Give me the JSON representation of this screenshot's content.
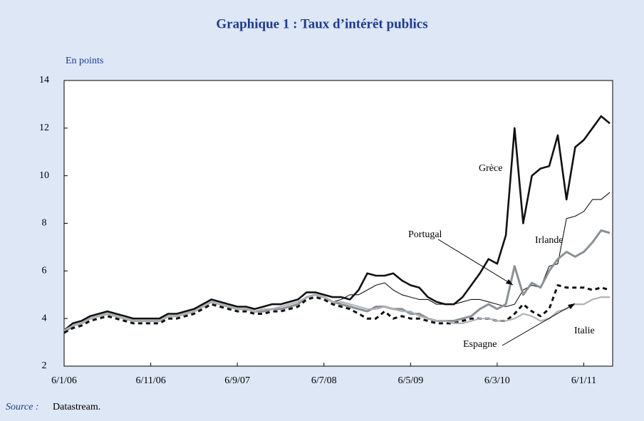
{
  "chart_data": {
    "type": "line",
    "title": "Graphique 1 : Taux d’intérêt publics",
    "y_label": "En points",
    "source_label": "Source :",
    "source": "Datastream.",
    "x": [
      "6/1/06",
      "6/2/06",
      "6/3/06",
      "6/4/06",
      "6/5/06",
      "6/6/06",
      "6/7/06",
      "6/8/06",
      "6/9/06",
      "6/10/06",
      "6/11/06",
      "6/12/06",
      "6/1/07",
      "6/2/07",
      "6/3/07",
      "6/4/07",
      "6/5/07",
      "6/6/07",
      "6/7/07",
      "6/8/07",
      "6/9/07",
      "6/10/07",
      "6/11/07",
      "6/12/07",
      "6/1/08",
      "6/2/08",
      "6/3/08",
      "6/4/08",
      "6/5/08",
      "6/6/08",
      "6/7/08",
      "6/8/08",
      "6/9/08",
      "6/10/08",
      "6/11/08",
      "6/12/08",
      "6/1/09",
      "6/2/09",
      "6/3/09",
      "6/4/09",
      "6/5/09",
      "6/6/09",
      "6/7/09",
      "6/8/09",
      "6/9/09",
      "6/10/09",
      "6/11/09",
      "6/12/09",
      "6/1/10",
      "6/2/10",
      "6/3/10",
      "6/4/10",
      "6/5/10",
      "6/6/10",
      "6/7/10",
      "6/8/10",
      "6/9/10",
      "6/10/10",
      "6/11/10",
      "6/12/10",
      "6/1/11",
      "6/2/11",
      "6/3/11",
      "6/4/11"
    ],
    "xticks": [
      "6/1/06",
      "6/11/06",
      "6/9/07",
      "6/7/08",
      "6/5/09",
      "6/3/10",
      "6/1/11"
    ],
    "ylim": [
      2,
      14
    ],
    "yticks": [
      2,
      4,
      6,
      8,
      10,
      12,
      14
    ],
    "series": [
      {
        "name": "Grèce",
        "color": "#111111",
        "width": 2.6,
        "style": "solid",
        "values": [
          3.5,
          3.8,
          3.9,
          4.1,
          4.2,
          4.3,
          4.2,
          4.1,
          4.0,
          4.0,
          4.0,
          4.0,
          4.2,
          4.2,
          4.3,
          4.4,
          4.6,
          4.8,
          4.7,
          4.6,
          4.5,
          4.5,
          4.4,
          4.5,
          4.6,
          4.6,
          4.7,
          4.8,
          5.1,
          5.1,
          5.0,
          4.9,
          4.9,
          4.8,
          5.2,
          5.9,
          5.8,
          5.8,
          5.9,
          5.6,
          5.4,
          5.3,
          4.9,
          4.7,
          4.6,
          4.6,
          4.9,
          5.4,
          5.9,
          6.5,
          6.3,
          7.5,
          12.0,
          8.0,
          10.0,
          10.3,
          10.4,
          11.7,
          9.0,
          11.2,
          11.5,
          12.0,
          12.5,
          12.2
        ]
      },
      {
        "name": "Irlande",
        "color": "#111111",
        "width": 1.1,
        "style": "solid",
        "values": [
          3.4,
          3.7,
          3.8,
          4.0,
          4.1,
          4.2,
          4.1,
          4.0,
          3.9,
          3.9,
          3.9,
          3.9,
          4.1,
          4.1,
          4.2,
          4.3,
          4.5,
          4.7,
          4.6,
          4.5,
          4.4,
          4.4,
          4.3,
          4.3,
          4.4,
          4.4,
          4.5,
          4.6,
          4.9,
          5.0,
          4.9,
          4.7,
          4.8,
          5.0,
          5.0,
          5.2,
          5.4,
          5.5,
          5.2,
          5.0,
          4.9,
          4.8,
          4.8,
          4.6,
          4.6,
          4.6,
          4.7,
          4.8,
          4.8,
          4.7,
          4.6,
          4.5,
          4.6,
          5.2,
          5.4,
          5.3,
          6.2,
          6.3,
          8.2,
          8.3,
          8.5,
          9.0,
          9.0,
          9.3
        ]
      },
      {
        "name": "Portugal",
        "color": "#8a9096",
        "width": 3,
        "style": "solid",
        "values": [
          3.4,
          3.7,
          3.8,
          4.0,
          4.1,
          4.2,
          4.1,
          4.0,
          3.9,
          3.9,
          3.9,
          3.9,
          4.1,
          4.1,
          4.2,
          4.3,
          4.5,
          4.7,
          4.6,
          4.5,
          4.4,
          4.4,
          4.3,
          4.3,
          4.4,
          4.4,
          4.5,
          4.6,
          4.9,
          5.0,
          4.9,
          4.7,
          4.6,
          4.5,
          4.4,
          4.3,
          4.5,
          4.5,
          4.4,
          4.4,
          4.2,
          4.2,
          4.0,
          3.9,
          3.9,
          3.9,
          4.0,
          4.1,
          4.4,
          4.6,
          4.4,
          4.6,
          6.2,
          5.0,
          5.5,
          5.3,
          6.0,
          6.5,
          6.8,
          6.6,
          6.8,
          7.2,
          7.7,
          7.6
        ]
      },
      {
        "name": "Espagne",
        "color": "#111111",
        "width": 3,
        "style": "dashed",
        "values": [
          3.4,
          3.6,
          3.7,
          3.9,
          4.0,
          4.1,
          4.0,
          3.9,
          3.8,
          3.8,
          3.8,
          3.8,
          4.0,
          4.0,
          4.1,
          4.2,
          4.4,
          4.6,
          4.5,
          4.4,
          4.3,
          4.3,
          4.2,
          4.2,
          4.3,
          4.3,
          4.4,
          4.5,
          4.8,
          4.9,
          4.8,
          4.6,
          4.5,
          4.4,
          4.2,
          4.0,
          4.0,
          4.3,
          4.0,
          4.1,
          4.0,
          4.0,
          3.9,
          3.8,
          3.8,
          3.8,
          3.9,
          4.0,
          4.0,
          4.0,
          3.9,
          3.9,
          4.2,
          4.6,
          4.3,
          4.1,
          4.4,
          5.4,
          5.3,
          5.3,
          5.3,
          5.2,
          5.3,
          5.2
        ]
      },
      {
        "name": "Italie",
        "color": "#b0b3b6",
        "width": 2.2,
        "style": "solid",
        "values": [
          3.5,
          3.7,
          3.8,
          4.0,
          4.1,
          4.2,
          4.1,
          4.0,
          3.9,
          3.9,
          3.9,
          3.9,
          4.1,
          4.1,
          4.2,
          4.3,
          4.5,
          4.7,
          4.6,
          4.5,
          4.4,
          4.4,
          4.3,
          4.4,
          4.4,
          4.5,
          4.6,
          4.7,
          4.9,
          5.0,
          4.9,
          4.7,
          4.7,
          4.6,
          4.5,
          4.4,
          4.4,
          4.5,
          4.4,
          4.3,
          4.3,
          4.1,
          4.0,
          3.9,
          3.9,
          3.8,
          3.8,
          3.9,
          4.0,
          4.0,
          3.9,
          3.9,
          4.0,
          4.2,
          4.1,
          3.9,
          4.0,
          4.3,
          4.4,
          4.6,
          4.6,
          4.8,
          4.9,
          4.9
        ]
      }
    ]
  }
}
